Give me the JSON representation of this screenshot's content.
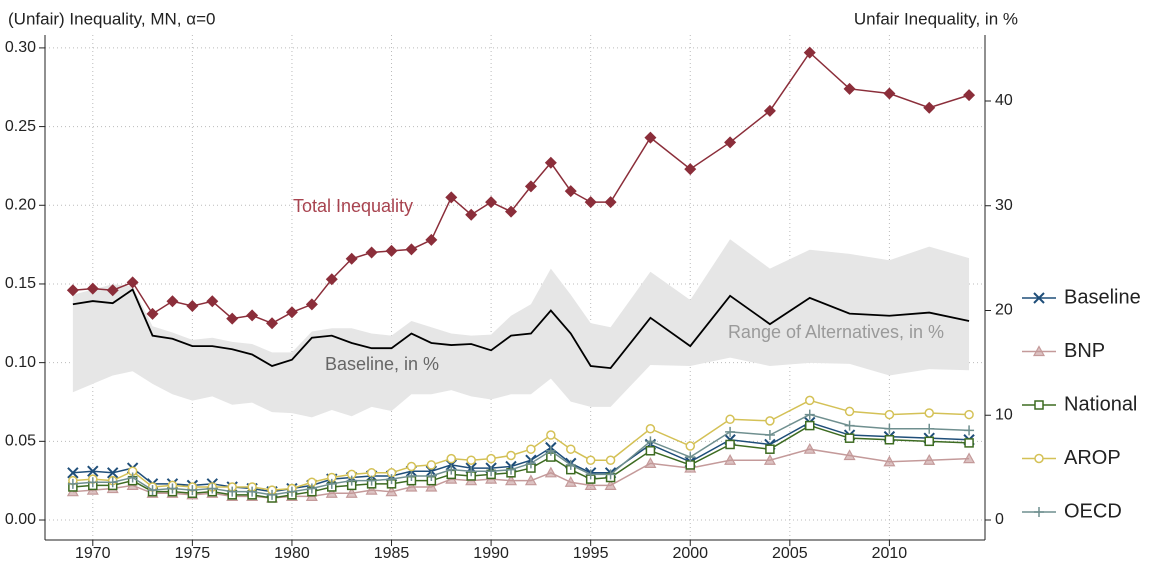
{
  "chart_data": {
    "type": "line",
    "y_label": "(Unfair) Inequality, MN, α=0",
    "y2_label": "Unfair Inequality, in %",
    "x": [
      1969,
      1970,
      1971,
      1972,
      1973,
      1974,
      1975,
      1976,
      1977,
      1978,
      1979,
      1980,
      1981,
      1982,
      1983,
      1984,
      1985,
      1986,
      1987,
      1988,
      1989,
      1990,
      1991,
      1992,
      1993,
      1994,
      1995,
      1996,
      1998,
      2000,
      2002,
      2004,
      2006,
      2008,
      2010,
      2012,
      2014
    ],
    "xlim": [
      1967.6,
      2014.8
    ],
    "xticks": [
      1970,
      1975,
      1980,
      1985,
      1990,
      1995,
      2000,
      2005,
      2010
    ],
    "ylim": [
      -0.0127,
      0.3082
    ],
    "yticks": [
      {
        "value": 0,
        "label": "0.00"
      },
      {
        "value": 0.05,
        "label": "0.05"
      },
      {
        "value": 0.1,
        "label": "0.10"
      },
      {
        "value": 0.15,
        "label": "0.15"
      },
      {
        "value": 0.2,
        "label": "0.20"
      },
      {
        "value": 0.25,
        "label": "0.25"
      },
      {
        "value": 0.3,
        "label": "0.30"
      }
    ],
    "y2lim": [
      -1.91,
      46.3
    ],
    "y2ticks": [
      0,
      10,
      20,
      30,
      40
    ],
    "grid": true,
    "legend_position": "right",
    "range": {
      "label": "Range of Alternatives, in %",
      "axis": "y2",
      "color": "#e6e6e6",
      "upper": [
        21.5,
        22,
        22.5,
        22.3,
        18.5,
        17.9,
        17.2,
        17.4,
        17.0,
        16.8,
        16.0,
        16.0,
        18.0,
        18.3,
        18.3,
        17.8,
        17.6,
        19.0,
        18.4,
        17.8,
        17.6,
        17.7,
        19.5,
        20.6,
        24.0,
        21.5,
        18.8,
        18.4,
        23.7,
        21.0,
        26.8,
        24.0,
        25.8,
        25.4,
        24.8,
        26.1,
        25.0
      ],
      "lower": [
        12.2,
        13.0,
        13.8,
        14.2,
        13.0,
        12.0,
        11.4,
        11.8,
        11.0,
        11.2,
        10.3,
        10.2,
        9.8,
        10.5,
        9.9,
        10.8,
        10.4,
        12.0,
        12.0,
        12.4,
        11.8,
        11.5,
        12.0,
        12.0,
        13.5,
        11.3,
        10.8,
        10.8,
        14.8,
        14.7,
        15.5,
        14.7,
        15.0,
        14.9,
        13.8,
        14.4,
        14.3
      ]
    },
    "baseline_share": {
      "label": "Baseline, in %",
      "axis": "y2",
      "color": "#000000",
      "values": [
        20.6,
        20.9,
        20.7,
        22.0,
        17.6,
        17.3,
        16.6,
        16.6,
        16.3,
        15.8,
        14.7,
        15.3,
        17.4,
        17.6,
        16.9,
        16.4,
        16.4,
        17.8,
        16.9,
        16.7,
        16.8,
        16.2,
        17.6,
        17.8,
        20.0,
        17.8,
        14.7,
        14.5,
        19.3,
        16.6,
        21.4,
        18.7,
        21.2,
        19.7,
        19.5,
        19.8,
        19.0
      ]
    },
    "total": {
      "label": "Total Inequality",
      "color": "#8b2e3a",
      "marker": "diamond",
      "values": [
        0.146,
        0.147,
        0.146,
        0.151,
        0.131,
        0.139,
        0.136,
        0.139,
        0.128,
        0.13,
        0.125,
        0.132,
        0.137,
        0.153,
        0.166,
        0.17,
        0.171,
        0.172,
        0.178,
        0.205,
        0.194,
        0.202,
        0.196,
        0.212,
        0.227,
        0.209,
        0.202,
        0.202,
        0.243,
        0.223,
        0.24,
        0.26,
        0.297,
        0.274,
        0.271,
        0.262,
        0.27
      ]
    },
    "series": [
      {
        "name": "Baseline",
        "color": "#1f4e79",
        "marker": "x",
        "values": [
          0.03,
          0.031,
          0.03,
          0.033,
          0.023,
          0.023,
          0.022,
          0.023,
          0.021,
          0.02,
          0.018,
          0.02,
          0.022,
          0.026,
          0.027,
          0.028,
          0.028,
          0.031,
          0.031,
          0.035,
          0.033,
          0.033,
          0.034,
          0.038,
          0.046,
          0.036,
          0.03,
          0.03,
          0.048,
          0.037,
          0.051,
          0.048,
          0.062,
          0.054,
          0.053,
          0.052,
          0.051
        ]
      },
      {
        "name": "BNP",
        "color": "#c49a9a",
        "marker": "triangle",
        "values": [
          0.018,
          0.019,
          0.02,
          0.022,
          0.017,
          0.017,
          0.016,
          0.017,
          0.015,
          0.015,
          0.014,
          0.015,
          0.015,
          0.017,
          0.017,
          0.019,
          0.018,
          0.021,
          0.021,
          0.026,
          0.025,
          0.026,
          0.025,
          0.025,
          0.03,
          0.024,
          0.022,
          0.022,
          0.036,
          0.033,
          0.038,
          0.038,
          0.045,
          0.041,
          0.037,
          0.038,
          0.039
        ]
      },
      {
        "name": "National",
        "color": "#3d6b21",
        "marker": "square",
        "values": [
          0.021,
          0.022,
          0.022,
          0.025,
          0.018,
          0.018,
          0.017,
          0.018,
          0.016,
          0.016,
          0.014,
          0.016,
          0.018,
          0.021,
          0.022,
          0.023,
          0.023,
          0.025,
          0.025,
          0.029,
          0.028,
          0.029,
          0.03,
          0.033,
          0.04,
          0.032,
          0.026,
          0.027,
          0.044,
          0.035,
          0.048,
          0.045,
          0.06,
          0.052,
          0.051,
          0.05,
          0.049
        ]
      },
      {
        "name": "AROP",
        "color": "#d4c156",
        "marker": "circle",
        "values": [
          0.025,
          0.026,
          0.025,
          0.031,
          0.021,
          0.022,
          0.021,
          0.021,
          0.021,
          0.021,
          0.019,
          0.02,
          0.024,
          0.027,
          0.029,
          0.03,
          0.03,
          0.034,
          0.035,
          0.039,
          0.038,
          0.039,
          0.041,
          0.045,
          0.054,
          0.045,
          0.038,
          0.038,
          0.058,
          0.047,
          0.064,
          0.063,
          0.076,
          0.069,
          0.067,
          0.068,
          0.067
        ]
      },
      {
        "name": "OECD",
        "color": "#6f8f8f",
        "marker": "plus",
        "values": [
          0.023,
          0.024,
          0.024,
          0.027,
          0.019,
          0.02,
          0.019,
          0.02,
          0.018,
          0.018,
          0.016,
          0.018,
          0.02,
          0.023,
          0.025,
          0.025,
          0.026,
          0.028,
          0.028,
          0.032,
          0.031,
          0.031,
          0.032,
          0.036,
          0.044,
          0.035,
          0.029,
          0.029,
          0.05,
          0.04,
          0.056,
          0.054,
          0.067,
          0.06,
          0.058,
          0.058,
          0.057
        ]
      }
    ]
  }
}
